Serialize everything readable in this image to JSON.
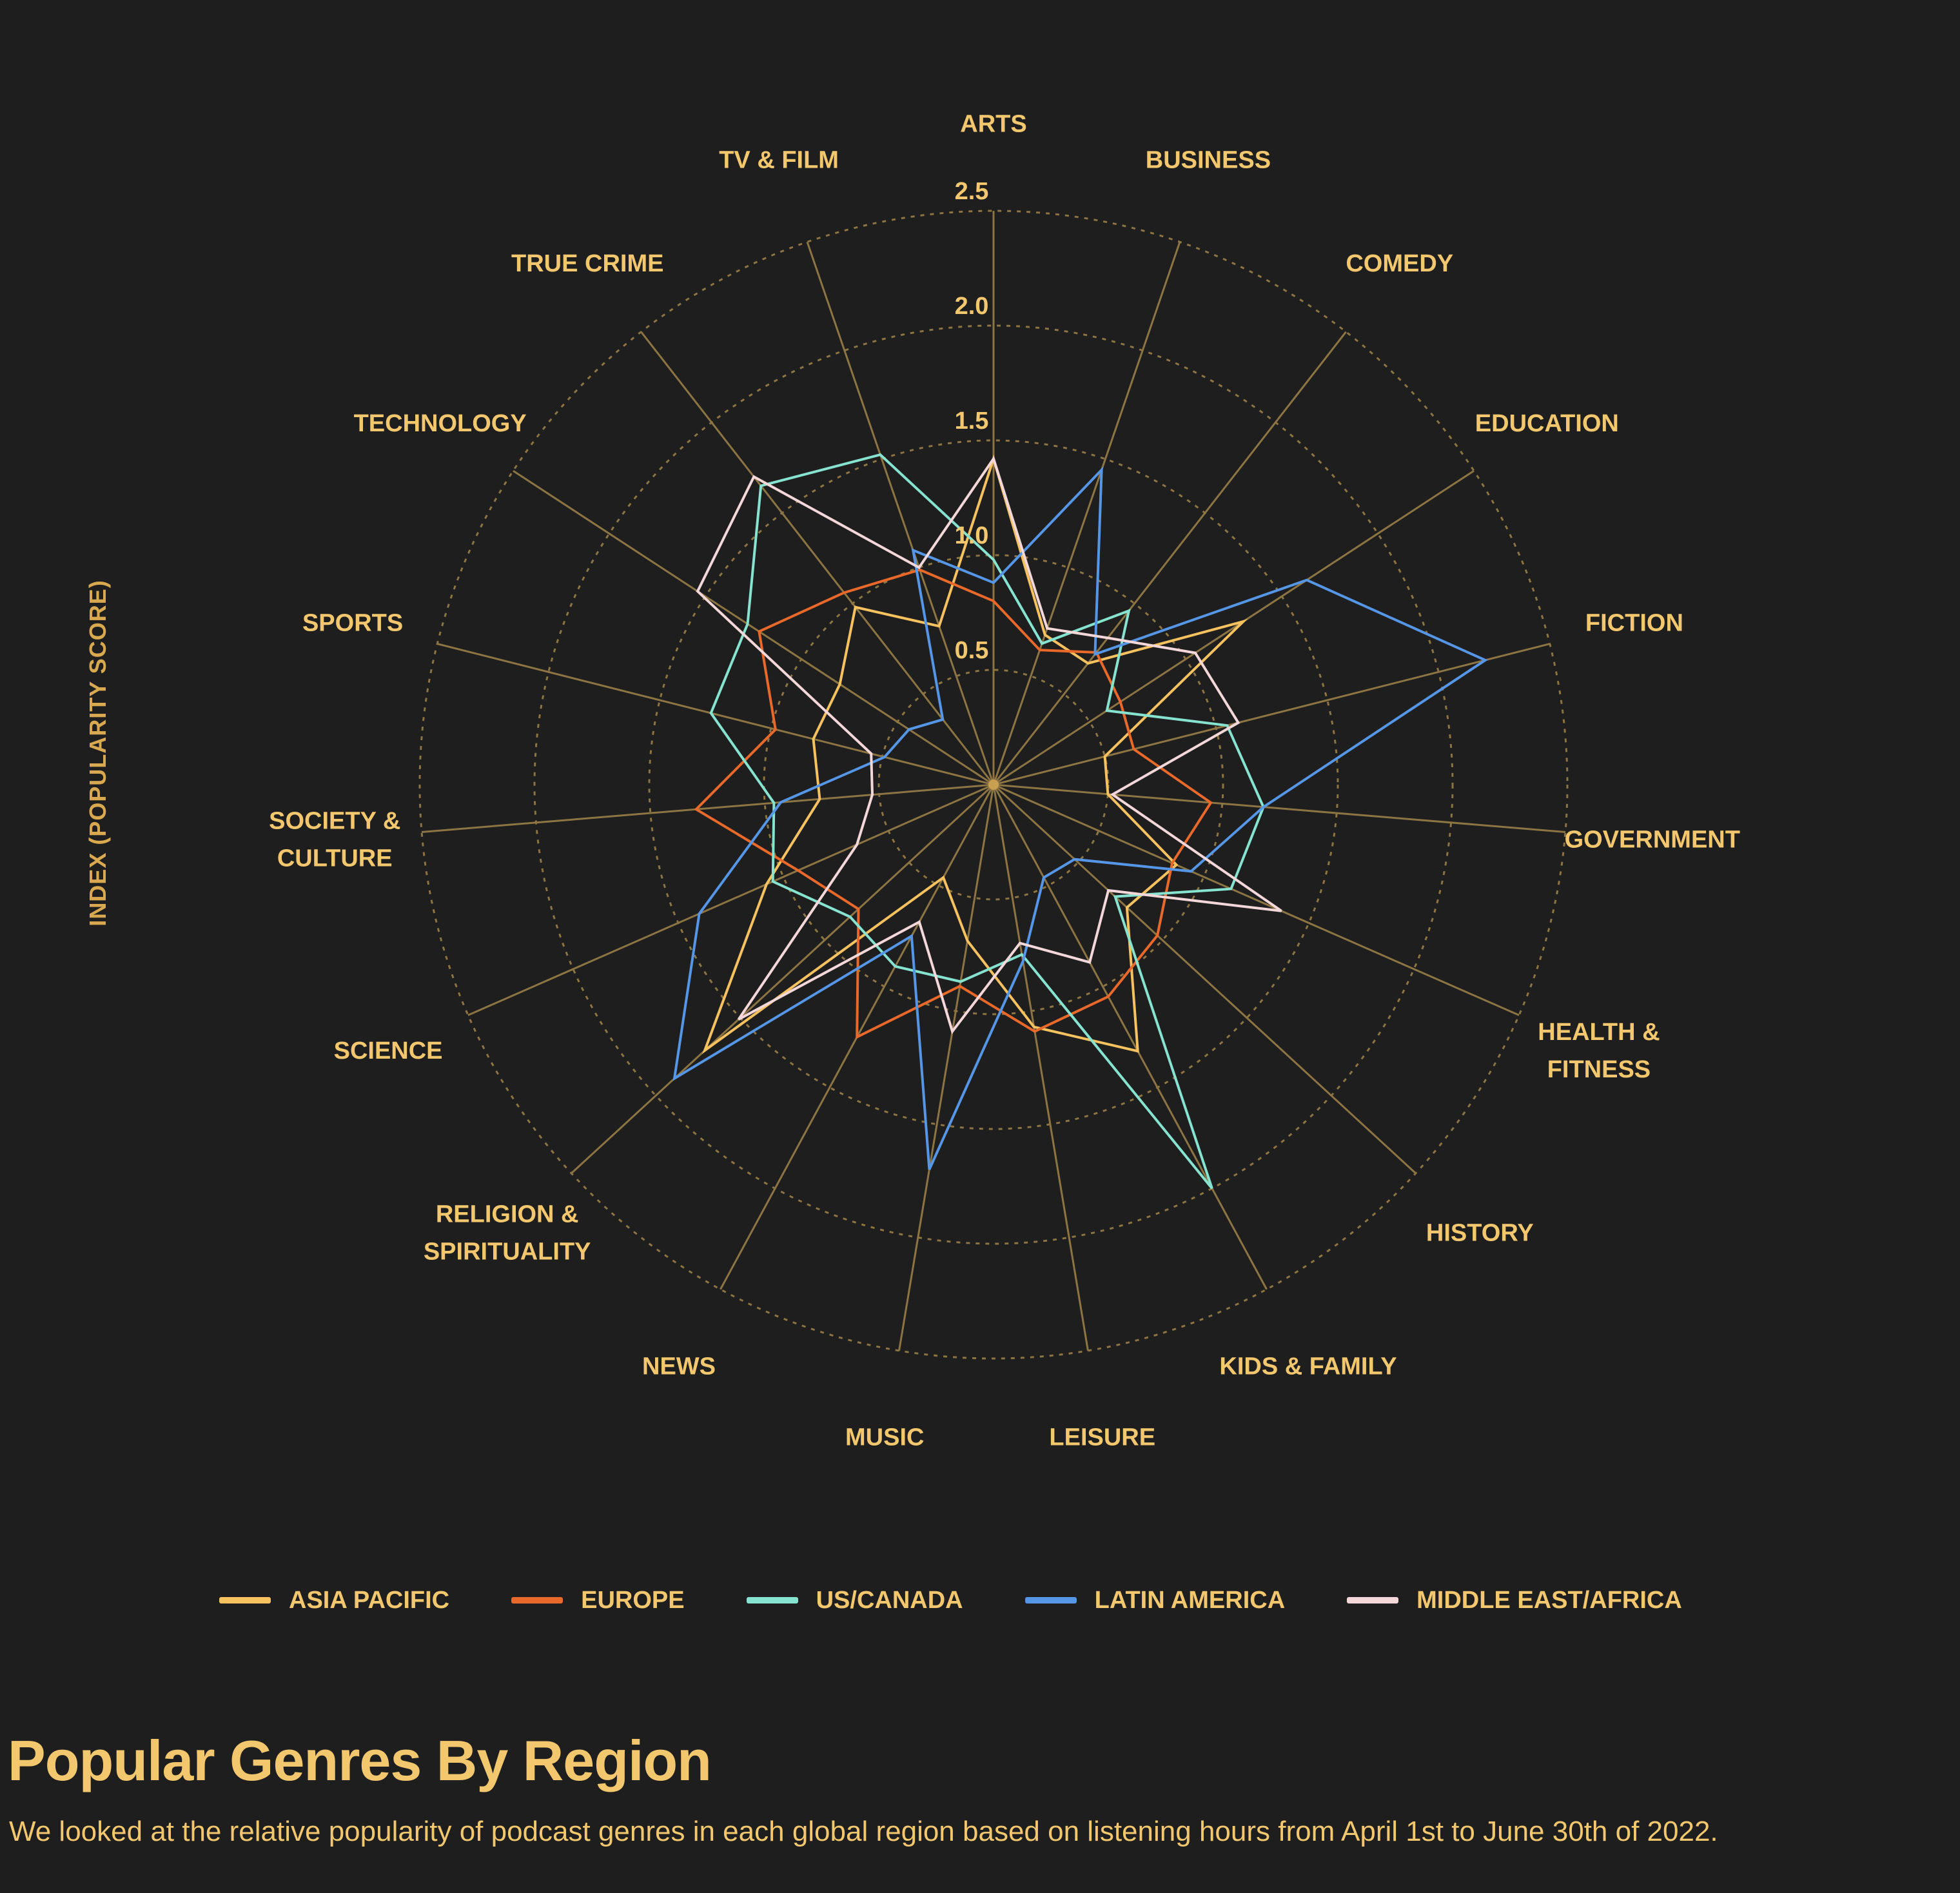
{
  "chart_data": {
    "type": "radar",
    "title": "Popular Genres By Region",
    "subtitle": "We looked at the relative popularity of podcast genres in each global region based on listening hours from April 1st to June 30th of 2022.",
    "ylabel": "INDEX (POPULARITY SCORE)",
    "rlim": [
      0,
      2.5
    ],
    "ticks": [
      "0.5",
      "1.0",
      "1.5",
      "2.0",
      "2.5"
    ],
    "categories": [
      [
        "ARTS"
      ],
      [
        "BUSINESS"
      ],
      [
        "COMEDY"
      ],
      [
        "EDUCATION"
      ],
      [
        "FICTION"
      ],
      [
        "GOVERNMENT"
      ],
      [
        "HEALTH &",
        "FITNESS"
      ],
      [
        "HISTORY"
      ],
      [
        "KIDS & FAMILY"
      ],
      [
        "LEISURE"
      ],
      [
        "MUSIC"
      ],
      [
        "NEWS"
      ],
      [
        "RELIGION &",
        "SPIRITUALITY"
      ],
      [
        "SCIENCE"
      ],
      [
        "SOCIETY &",
        "CULTURE"
      ],
      [
        "SPORTS"
      ],
      [
        "TECHNOLOGY"
      ],
      [
        "TRUE CRIME"
      ],
      [
        "TV & FILM"
      ]
    ],
    "series": [
      {
        "name": "ASIA PACIFIC",
        "color": "#f6c15f",
        "values": [
          1.42,
          0.69,
          0.67,
          1.3,
          0.5,
          0.5,
          0.87,
          0.79,
          1.32,
          1.07,
          0.69,
          0.46,
          1.71,
          1.08,
          0.76,
          0.81,
          0.8,
          0.98,
          0.73
        ]
      },
      {
        "name": "EUROPE",
        "color": "#e8692a",
        "values": [
          0.8,
          0.62,
          0.73,
          0.66,
          0.63,
          0.95,
          0.85,
          0.97,
          1.05,
          1.09,
          0.89,
          1.25,
          0.8,
          0.93,
          1.3,
          0.98,
          1.22,
          1.06,
          0.99
        ]
      },
      {
        "name": "US/CANADA",
        "color": "#86e3d0",
        "values": [
          0.98,
          0.65,
          0.96,
          0.59,
          1.05,
          1.18,
          1.13,
          0.72,
          2.0,
          0.75,
          0.87,
          0.9,
          0.85,
          1.05,
          0.96,
          1.27,
          1.28,
          1.65,
          1.52
        ]
      },
      {
        "name": "LATIN AMERICA",
        "color": "#5596e6",
        "values": [
          0.88,
          1.45,
          0.72,
          1.63,
          2.21,
          1.18,
          0.94,
          0.48,
          0.46,
          0.78,
          1.7,
          0.75,
          1.89,
          1.4,
          0.93,
          0.49,
          0.44,
          0.36,
          1.08
        ]
      },
      {
        "name": "MIDDLE EAST/AFRICA",
        "color": "#f3d7d9",
        "values": [
          1.42,
          0.72,
          0.81,
          1.05,
          1.1,
          0.52,
          1.37,
          0.68,
          0.88,
          0.7,
          1.09,
          0.68,
          1.51,
          0.65,
          0.53,
          0.55,
          1.54,
          1.7,
          1.0
        ]
      }
    ]
  }
}
